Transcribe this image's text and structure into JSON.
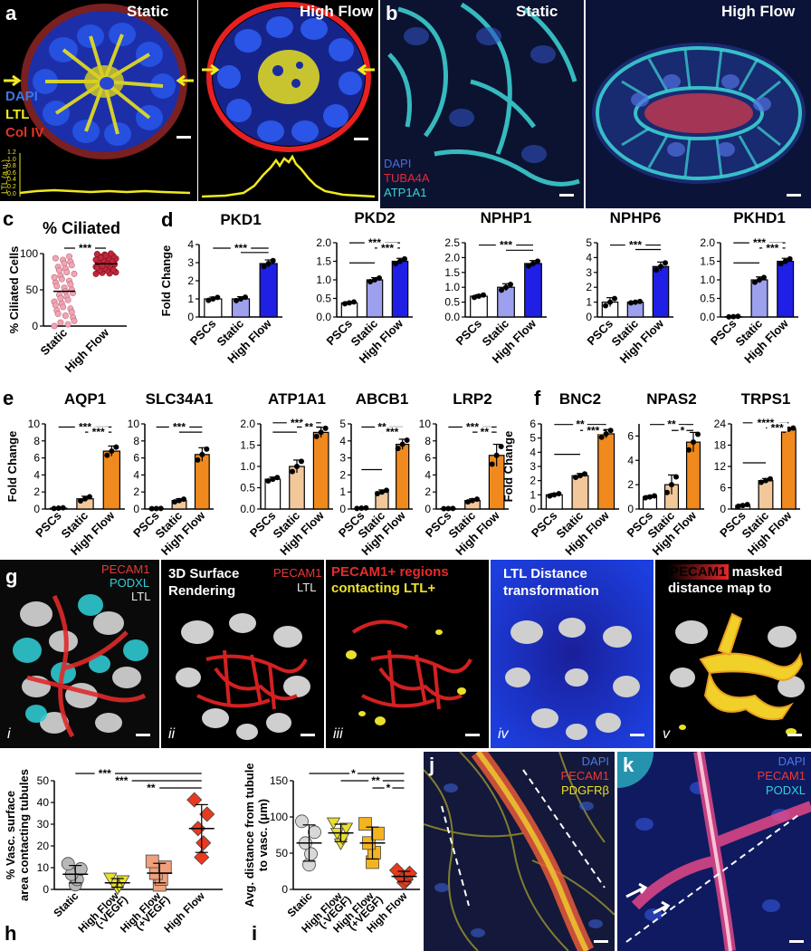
{
  "panels": {
    "a": {
      "letter": "a",
      "left_label": "Static",
      "right_label": "High Flow",
      "stains": [
        "DAPI",
        "LTL",
        "Col IV"
      ],
      "stain_colors": [
        "#3a78e6",
        "#f0ea1e",
        "#e63222"
      ],
      "profile_axis_label": "LTL (a.u.)",
      "profile_ticks": [
        "1.2",
        "1.0",
        "0.8",
        "0.6",
        "0.4",
        "0.2",
        "0.0"
      ]
    },
    "b": {
      "letter": "b",
      "left_label": "Static",
      "right_label": "High Flow",
      "stains": [
        "DAPI",
        "TUBA4A",
        "ATP1A1"
      ],
      "stain_colors": [
        "#4a6ee0",
        "#e6283a",
        "#34d6d6"
      ]
    },
    "c": {
      "letter": "c"
    },
    "d": {
      "letter": "d"
    },
    "e": {
      "letter": "e"
    },
    "f": {
      "letter": "f"
    },
    "g": {
      "letter": "g",
      "sub": [
        {
          "numeral": "i",
          "labels": [
            {
              "text": "PECAM1",
              "color": "#e63a3a"
            },
            {
              "text": "PODXL",
              "color": "#2fd0d8"
            },
            {
              "text": "LTL",
              "color": "#e8e8e8"
            }
          ]
        },
        {
          "numeral": "ii",
          "title": "3D Surface Rendering",
          "labels": [
            {
              "text": "PECAM1",
              "color": "#e63a3a"
            },
            {
              "text": "LTL",
              "color": "#e8e8e8"
            }
          ]
        },
        {
          "numeral": "iii",
          "title_a": "PECAM1+ regions",
          "title_b": "contacting LTL+"
        },
        {
          "numeral": "iv",
          "title": "LTL Distance transformation"
        },
        {
          "numeral": "v",
          "title_a": "PECAM1",
          "title_b": " masked",
          "title_c": "distance map to"
        }
      ]
    },
    "h": {
      "letter": "h"
    },
    "i": {
      "letter": "i"
    },
    "j": {
      "letter": "j",
      "stains": [
        "DAPI",
        "PECAM1",
        "PDGFRβ"
      ],
      "stain_colors": [
        "#4a78e8",
        "#e63a3a",
        "#ede22a"
      ]
    },
    "k": {
      "letter": "k",
      "stains": [
        "DAPI",
        "PECAM1",
        "PODXL"
      ],
      "stain_colors": [
        "#4a78e8",
        "#e63a3a",
        "#2fd0d8"
      ]
    }
  },
  "chart_data": [
    {
      "id": "c",
      "type": "scatter",
      "title": "% Ciliated",
      "ylabel": "% Ciliated Cells",
      "categories": [
        "Static",
        "High Flow"
      ],
      "ylim": [
        0,
        100
      ],
      "yticks": [
        0,
        50,
        100
      ],
      "means": [
        48,
        86
      ],
      "sig": "***",
      "colors": [
        "#f0a6b4",
        "#c2283a"
      ]
    },
    {
      "id": "d1",
      "type": "bar",
      "title": "PKD1",
      "ylabel": "Fold Change",
      "categories": [
        "PSCs",
        "Static",
        "High Flow"
      ],
      "values": [
        1.0,
        1.0,
        2.95
      ],
      "errors": [
        0.1,
        0.12,
        0.2
      ],
      "ylim": [
        0,
        4
      ],
      "yticks": [
        0,
        1,
        2,
        3,
        4
      ],
      "sig": [
        "***"
      ],
      "colors": [
        "#ffffff",
        "#9da0ec",
        "#1f1fe6"
      ]
    },
    {
      "id": "d2",
      "type": "bar",
      "title": "PKD2",
      "ylabel": "",
      "categories": [
        "PSCs",
        "Static",
        "High Flow"
      ],
      "values": [
        0.38,
        1.0,
        1.5
      ],
      "errors": [
        0.03,
        0.06,
        0.08
      ],
      "ylim": [
        0,
        2.0
      ],
      "yticks": [
        0.0,
        0.5,
        1.0,
        1.5,
        2.0
      ],
      "sig": [
        "***",
        "***"
      ],
      "colors": [
        "#ffffff",
        "#9da0ec",
        "#1f1fe6"
      ]
    },
    {
      "id": "d3",
      "type": "bar",
      "title": "NPHP1",
      "ylabel": "",
      "categories": [
        "PSCs",
        "Static",
        "High Flow"
      ],
      "values": [
        0.7,
        1.0,
        1.8
      ],
      "errors": [
        0.05,
        0.12,
        0.1
      ],
      "ylim": [
        0,
        2.5
      ],
      "yticks": [
        0.0,
        0.5,
        1.0,
        1.5,
        2.0,
        2.5
      ],
      "sig": [
        "***"
      ],
      "colors": [
        "#ffffff",
        "#9da0ec",
        "#1f1fe6"
      ]
    },
    {
      "id": "d4",
      "type": "bar",
      "title": "NPHP6",
      "ylabel": "",
      "categories": [
        "PSCs",
        "Static",
        "High Flow"
      ],
      "values": [
        1.0,
        1.0,
        3.4
      ],
      "errors": [
        0.3,
        0.06,
        0.3
      ],
      "ylim": [
        0,
        5
      ],
      "yticks": [
        0,
        1,
        2,
        3,
        4,
        5
      ],
      "sig": [
        "***"
      ],
      "colors": [
        "#ffffff",
        "#9da0ec",
        "#1f1fe6"
      ]
    },
    {
      "id": "d5",
      "type": "bar",
      "title": "PKHD1",
      "ylabel": "",
      "categories": [
        "PSCs",
        "Static",
        "High Flow"
      ],
      "values": [
        0.01,
        1.0,
        1.5
      ],
      "errors": [
        0.01,
        0.08,
        0.08
      ],
      "ylim": [
        0,
        2.0
      ],
      "yticks": [
        0.0,
        0.5,
        1.0,
        1.5,
        2.0
      ],
      "sig": [
        "***",
        "***"
      ],
      "colors": [
        "#ffffff",
        "#9da0ec",
        "#1f1fe6"
      ]
    },
    {
      "id": "e1",
      "type": "bar",
      "title": "AQP1",
      "ylabel": "Fold Change",
      "categories": [
        "PSCs",
        "Static",
        "High Flow"
      ],
      "values": [
        0.1,
        1.2,
        6.8
      ],
      "errors": [
        0.05,
        0.3,
        0.6
      ],
      "ylim": [
        0,
        10
      ],
      "yticks": [
        0,
        2,
        4,
        6,
        8,
        10
      ],
      "sig": [
        "***",
        "***"
      ],
      "colors": [
        "#ffffff",
        "#f2c79a",
        "#f08a1e"
      ]
    },
    {
      "id": "e2",
      "type": "bar",
      "title": "SLC34A1",
      "ylabel": "",
      "categories": [
        "PSCs",
        "Static",
        "High Flow"
      ],
      "values": [
        0.05,
        1.0,
        6.4
      ],
      "errors": [
        0.02,
        0.2,
        0.8
      ],
      "ylim": [
        0,
        10
      ],
      "yticks": [
        0,
        2,
        4,
        6,
        8,
        10
      ],
      "sig": [
        "***"
      ],
      "colors": [
        "#ffffff",
        "#f2c79a",
        "#f08a1e"
      ]
    },
    {
      "id": "e3",
      "type": "bar",
      "title": "ATP1A1",
      "ylabel": "",
      "categories": [
        "PSCs",
        "Static",
        "High Flow"
      ],
      "values": [
        0.7,
        1.0,
        1.8
      ],
      "errors": [
        0.05,
        0.15,
        0.12
      ],
      "ylim": [
        0,
        2.0
      ],
      "yticks": [
        0.0,
        0.5,
        1.0,
        1.5,
        2.0
      ],
      "sig": [
        "***",
        "**"
      ],
      "colors": [
        "#ffffff",
        "#f2c79a",
        "#f08a1e"
      ]
    },
    {
      "id": "e4",
      "type": "bar",
      "title": "ABCB1",
      "ylabel": "",
      "categories": [
        "PSCs",
        "Static",
        "High Flow"
      ],
      "values": [
        0.05,
        1.0,
        3.8
      ],
      "errors": [
        0.02,
        0.12,
        0.3
      ],
      "ylim": [
        0,
        5
      ],
      "yticks": [
        0,
        1,
        2,
        3,
        4,
        5
      ],
      "sig": [
        "**",
        "***"
      ],
      "colors": [
        "#ffffff",
        "#f2c79a",
        "#f08a1e"
      ]
    },
    {
      "id": "e5",
      "type": "bar",
      "title": "LRP2",
      "ylabel": "",
      "categories": [
        "PSCs",
        "Static",
        "High Flow"
      ],
      "values": [
        0.05,
        1.0,
        6.3
      ],
      "errors": [
        0.02,
        0.2,
        1.3
      ],
      "ylim": [
        0,
        10
      ],
      "yticks": [
        0,
        2,
        4,
        6,
        8,
        10
      ],
      "sig": [
        "***",
        "**"
      ],
      "colors": [
        "#ffffff",
        "#f2c79a",
        "#f08a1e"
      ]
    },
    {
      "id": "f1",
      "type": "bar",
      "title": "BNC2",
      "ylabel": "Fold Change",
      "categories": [
        "PSCs",
        "Static",
        "High Flow"
      ],
      "values": [
        1.0,
        2.35,
        5.3
      ],
      "errors": [
        0.1,
        0.15,
        0.3
      ],
      "ylim": [
        0,
        6
      ],
      "yticks": [
        0,
        1,
        2,
        3,
        4,
        5,
        6
      ],
      "sig": [
        "**",
        "***"
      ],
      "colors": [
        "#ffffff",
        "#f2c79a",
        "#f08a1e"
      ]
    },
    {
      "id": "f2",
      "type": "bar",
      "title": "NPAS2",
      "ylabel": "",
      "categories": [
        "PSCs",
        "Static",
        "High Flow"
      ],
      "values": [
        1.0,
        2.0,
        5.5
      ],
      "errors": [
        0.1,
        0.8,
        0.8
      ],
      "ylim": [
        0,
        7
      ],
      "yticks": [
        0,
        2,
        4,
        6
      ],
      "sig": [
        "**",
        "*"
      ],
      "colors": [
        "#ffffff",
        "#f2c79a",
        "#f08a1e"
      ]
    },
    {
      "id": "f3",
      "type": "bar",
      "title": "TRPS1",
      "ylabel": "",
      "categories": [
        "PSCs",
        "Static",
        "High Flow"
      ],
      "values": [
        1.0,
        8.0,
        22.5
      ],
      "errors": [
        0.3,
        0.6,
        0.4
      ],
      "ylim": [
        0,
        24
      ],
      "yticks": [
        0,
        6,
        12,
        18,
        24
      ],
      "sig": [
        "****",
        "***"
      ],
      "colors": [
        "#ffffff",
        "#f2c79a",
        "#f08a1e"
      ]
    },
    {
      "id": "h",
      "type": "scatter",
      "ylabel": "% Vasc. surface area contacting tubules",
      "categories": [
        "Static",
        "High Flow (-VEGF)",
        "High Flow (+VEGF)",
        "High Flow"
      ],
      "means": [
        7,
        3,
        7.5,
        28
      ],
      "errors": [
        4,
        2,
        4.5,
        11
      ],
      "ylim": [
        0,
        50
      ],
      "yticks": [
        0,
        10,
        20,
        30,
        40,
        50
      ],
      "sig": [
        "***",
        "***",
        "**"
      ],
      "colors": [
        "#b8b8b8",
        "#e8e02a",
        "#f0a07a",
        "#e83a1e"
      ],
      "markers": [
        "circle",
        "triangle-down",
        "square",
        "diamond"
      ]
    },
    {
      "id": "i",
      "type": "scatter",
      "ylabel": "Avg. distance from tubule to vasc. (μm)",
      "categories": [
        "Static",
        "High Flow (-VEGF)",
        "High Flow (+VEGF)",
        "High Flow"
      ],
      "means": [
        64,
        78,
        64,
        18
      ],
      "errors": [
        25,
        12,
        22,
        7
      ],
      "ylim": [
        0,
        150
      ],
      "yticks": [
        0,
        50,
        100,
        150
      ],
      "sig": [
        "*",
        "**",
        "*"
      ],
      "colors": [
        "#d8d8d8",
        "#e8e02a",
        "#f4b420",
        "#e83a1e"
      ],
      "markers": [
        "circle",
        "triangle-down",
        "square",
        "diamond"
      ]
    }
  ]
}
